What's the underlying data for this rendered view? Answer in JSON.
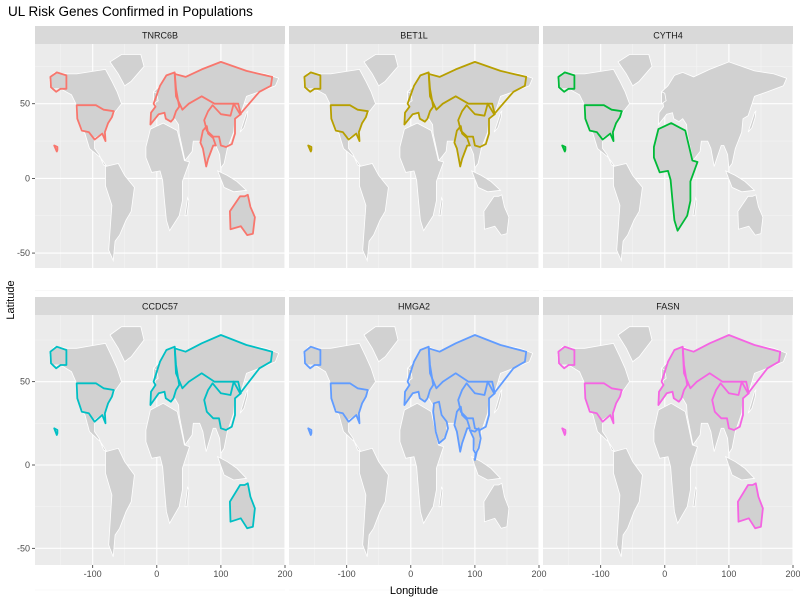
{
  "chart_data": {
    "type": "map",
    "title": "UL Risk Genes Confirmed in Populations",
    "xlabel": "Longitude",
    "ylabel": "Latitude",
    "xlim": [
      -190,
      200
    ],
    "ylim": [
      -60,
      90
    ],
    "x_ticks": [
      -100,
      0,
      100,
      200
    ],
    "y_ticks": [
      -50,
      0,
      50
    ],
    "x_tick_labels": [
      "-100",
      "0",
      "100",
      "200"
    ],
    "y_tick_labels": [
      "-50",
      "0",
      "50"
    ],
    "grid": true,
    "panel_background": "#ebebeb",
    "land_color": "#d1d1d1",
    "border_color": "#ffffff",
    "strip_color": "#d9d9d9",
    "panels": [
      {
        "gene": "TNRC6B",
        "color": "#F8766D",
        "regions": [
          "USA",
          "Alaska",
          "Hawaii",
          "Europe",
          "Russia",
          "China",
          "India",
          "Australia"
        ]
      },
      {
        "gene": "BET1L",
        "color": "#B79F00",
        "regions": [
          "USA",
          "Alaska",
          "Hawaii",
          "Europe",
          "Russia",
          "China",
          "India"
        ]
      },
      {
        "gene": "CYTH4",
        "color": "#00BA38",
        "regions": [
          "USA",
          "Alaska",
          "Hawaii",
          "Africa"
        ]
      },
      {
        "gene": "CCDC57",
        "color": "#00BFC4",
        "regions": [
          "USA",
          "Alaska",
          "Hawaii",
          "Europe",
          "Russia",
          "China",
          "Australia"
        ]
      },
      {
        "gene": "HMGA2",
        "color": "#619CFF",
        "regions": [
          "USA",
          "Alaska",
          "Hawaii",
          "Europe",
          "Russia",
          "China",
          "India",
          "Southeast Asia",
          "Middle East"
        ]
      },
      {
        "gene": "FASN",
        "color": "#F564E3",
        "regions": [
          "USA",
          "Alaska",
          "Hawaii",
          "Europe",
          "Russia",
          "China",
          "Australia"
        ]
      }
    ]
  }
}
